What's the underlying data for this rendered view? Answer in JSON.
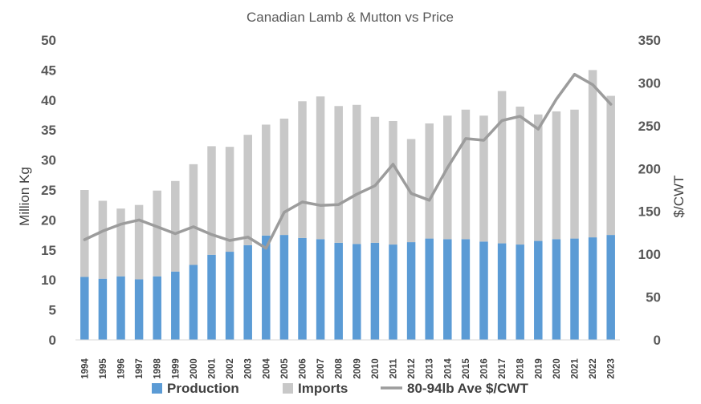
{
  "chart_data": {
    "type": "bar",
    "title": "Canadian Lamb & Mutton vs Price",
    "xlabel": "",
    "ylabel": "Million Kg",
    "y2label": "$/CWT",
    "ylim": [
      0,
      50
    ],
    "y2lim": [
      0,
      350
    ],
    "yticks": [
      "0",
      "5",
      "10",
      "15",
      "20",
      "25",
      "30",
      "35",
      "40",
      "45",
      "50"
    ],
    "y2ticks": [
      "0",
      "50",
      "100",
      "150",
      "200",
      "250",
      "300",
      "350"
    ],
    "categories": [
      "1994",
      "1995",
      "1996",
      "1997",
      "1998",
      "1999",
      "2000",
      "2001",
      "2002",
      "2003",
      "2004",
      "2005",
      "2006",
      "2007",
      "2008",
      "2009",
      "2010",
      "2011",
      "2012",
      "2013",
      "2014",
      "2015",
      "2016",
      "2017",
      "2018",
      "2019",
      "2020",
      "2021",
      "2022",
      "2023"
    ],
    "stacked": true,
    "grid": false,
    "legend_position": "bottom",
    "series": [
      {
        "name": "Production",
        "kind": "bar",
        "axis": "left",
        "color": "#5B9BD5",
        "values": [
          10.5,
          10.2,
          10.6,
          10.1,
          10.6,
          11.4,
          12.5,
          14.2,
          14.7,
          15.8,
          17.4,
          17.5,
          17.0,
          16.8,
          16.2,
          16.0,
          16.2,
          15.9,
          16.3,
          16.9,
          16.8,
          16.8,
          16.4,
          16.1,
          15.9,
          16.5,
          16.8,
          16.9,
          17.1,
          17.5
        ]
      },
      {
        "name": "Imports",
        "kind": "bar",
        "axis": "left",
        "color": "#C8C8C8",
        "values": [
          14.5,
          13.0,
          11.3,
          12.4,
          14.3,
          15.1,
          16.8,
          18.1,
          17.5,
          18.4,
          18.5,
          19.4,
          22.8,
          23.8,
          22.8,
          23.2,
          21.0,
          20.6,
          17.2,
          19.2,
          20.6,
          21.6,
          21.0,
          25.4,
          23.0,
          21.1,
          21.3,
          21.5,
          27.9,
          23.2
        ]
      },
      {
        "name": "80-94lb Ave $/CWT",
        "kind": "line",
        "axis": "right",
        "color": "#9C9C9C",
        "values": [
          117,
          127,
          135,
          140,
          132,
          124,
          132,
          123,
          116,
          120,
          107,
          149,
          161,
          157,
          158,
          170,
          180,
          205,
          171,
          163,
          201,
          235,
          233,
          256,
          261,
          246,
          281,
          310,
          298,
          275
        ]
      }
    ]
  }
}
